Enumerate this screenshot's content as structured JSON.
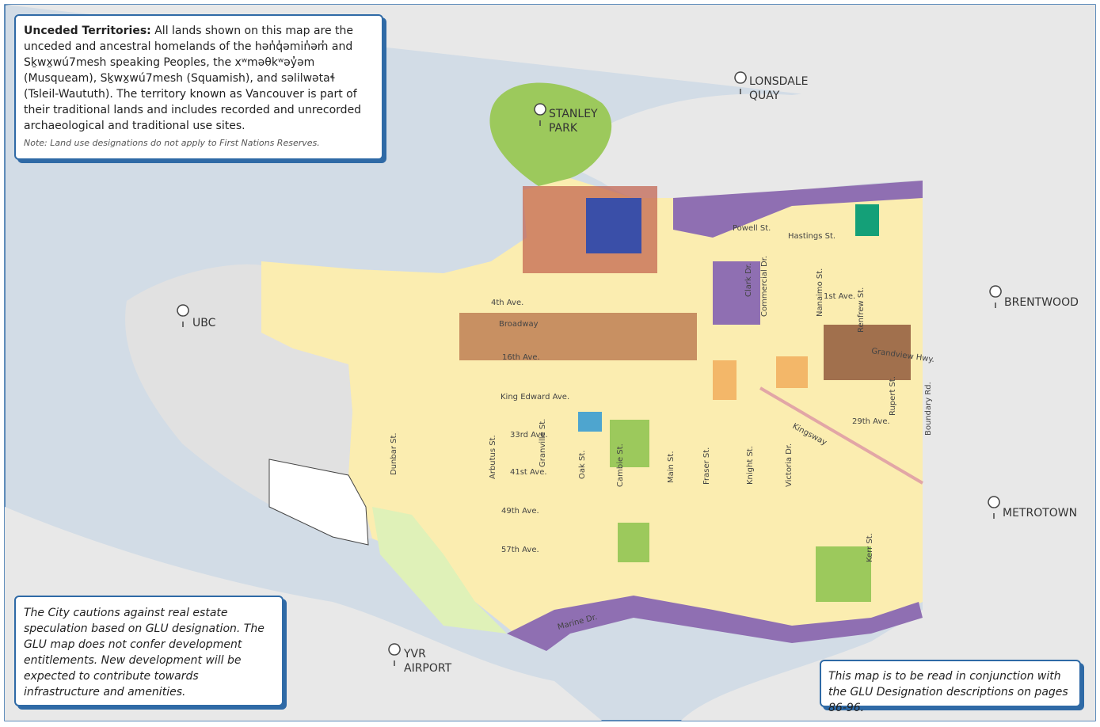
{
  "info_box": {
    "title": "Unceded Territories:",
    "body": "All lands shown on this map are the unceded and ancestral homelands of the hən̓q̓əmin̓əm̓ and Sḵwx̱wú7mesh speaking Peoples, the xʷməθkʷəy̓əm (Musqueam), Sḵwx̱wú7mesh (Squamish), and səlilwətaɬ (Tsleil-Waututh). The territory known as Vancouver is part of their traditional lands and includes recorded and unrecorded archaeological and traditional use sites.",
    "note": "Note: Land use designations do not apply to First Nations Reserves."
  },
  "places": [
    {
      "lines": [
        "STANLEY",
        "PARK"
      ]
    },
    {
      "lines": [
        "LONSDALE",
        "QUAY"
      ]
    },
    {
      "lines": [
        "UBC"
      ]
    },
    {
      "lines": [
        "BRENTWOOD"
      ]
    },
    {
      "lines": [
        "METROTOWN"
      ]
    },
    {
      "lines": [
        "YVR",
        "AIRPORT"
      ]
    }
  ],
  "streets": [
    "Powell St.",
    "Hastings St.",
    "4th Ave.",
    "Broadway",
    "1st Ave.",
    "16th Ave.",
    "King Edward Ave.",
    "33rd Ave.",
    "41st Ave.",
    "49th Ave.",
    "57th Ave.",
    "29th Ave.",
    "Marine Dr.",
    "Kingsway",
    "Grandview Hwy.",
    "Dunbar St.",
    "Arbutus St.",
    "Granville St.",
    "Oak St.",
    "Cambie St.",
    "Main St.",
    "Fraser St.",
    "Knight St.",
    "Victoria Dr.",
    "Commercial Dr.",
    "Clark Dr.",
    "Nanaimo St.",
    "Renfrew St.",
    "Rupert St.",
    "Kerr St.",
    "Boundary Rd."
  ],
  "caution": "The City cautions against real estate speculation based on GLU designation. The GLU map does not confer development entitlements. New development will be expected to contribute towards infrastructure and amenities.",
  "reading_note": "This map is to be read in conjunction with the GLU Designation descriptions on pages 86-96."
}
